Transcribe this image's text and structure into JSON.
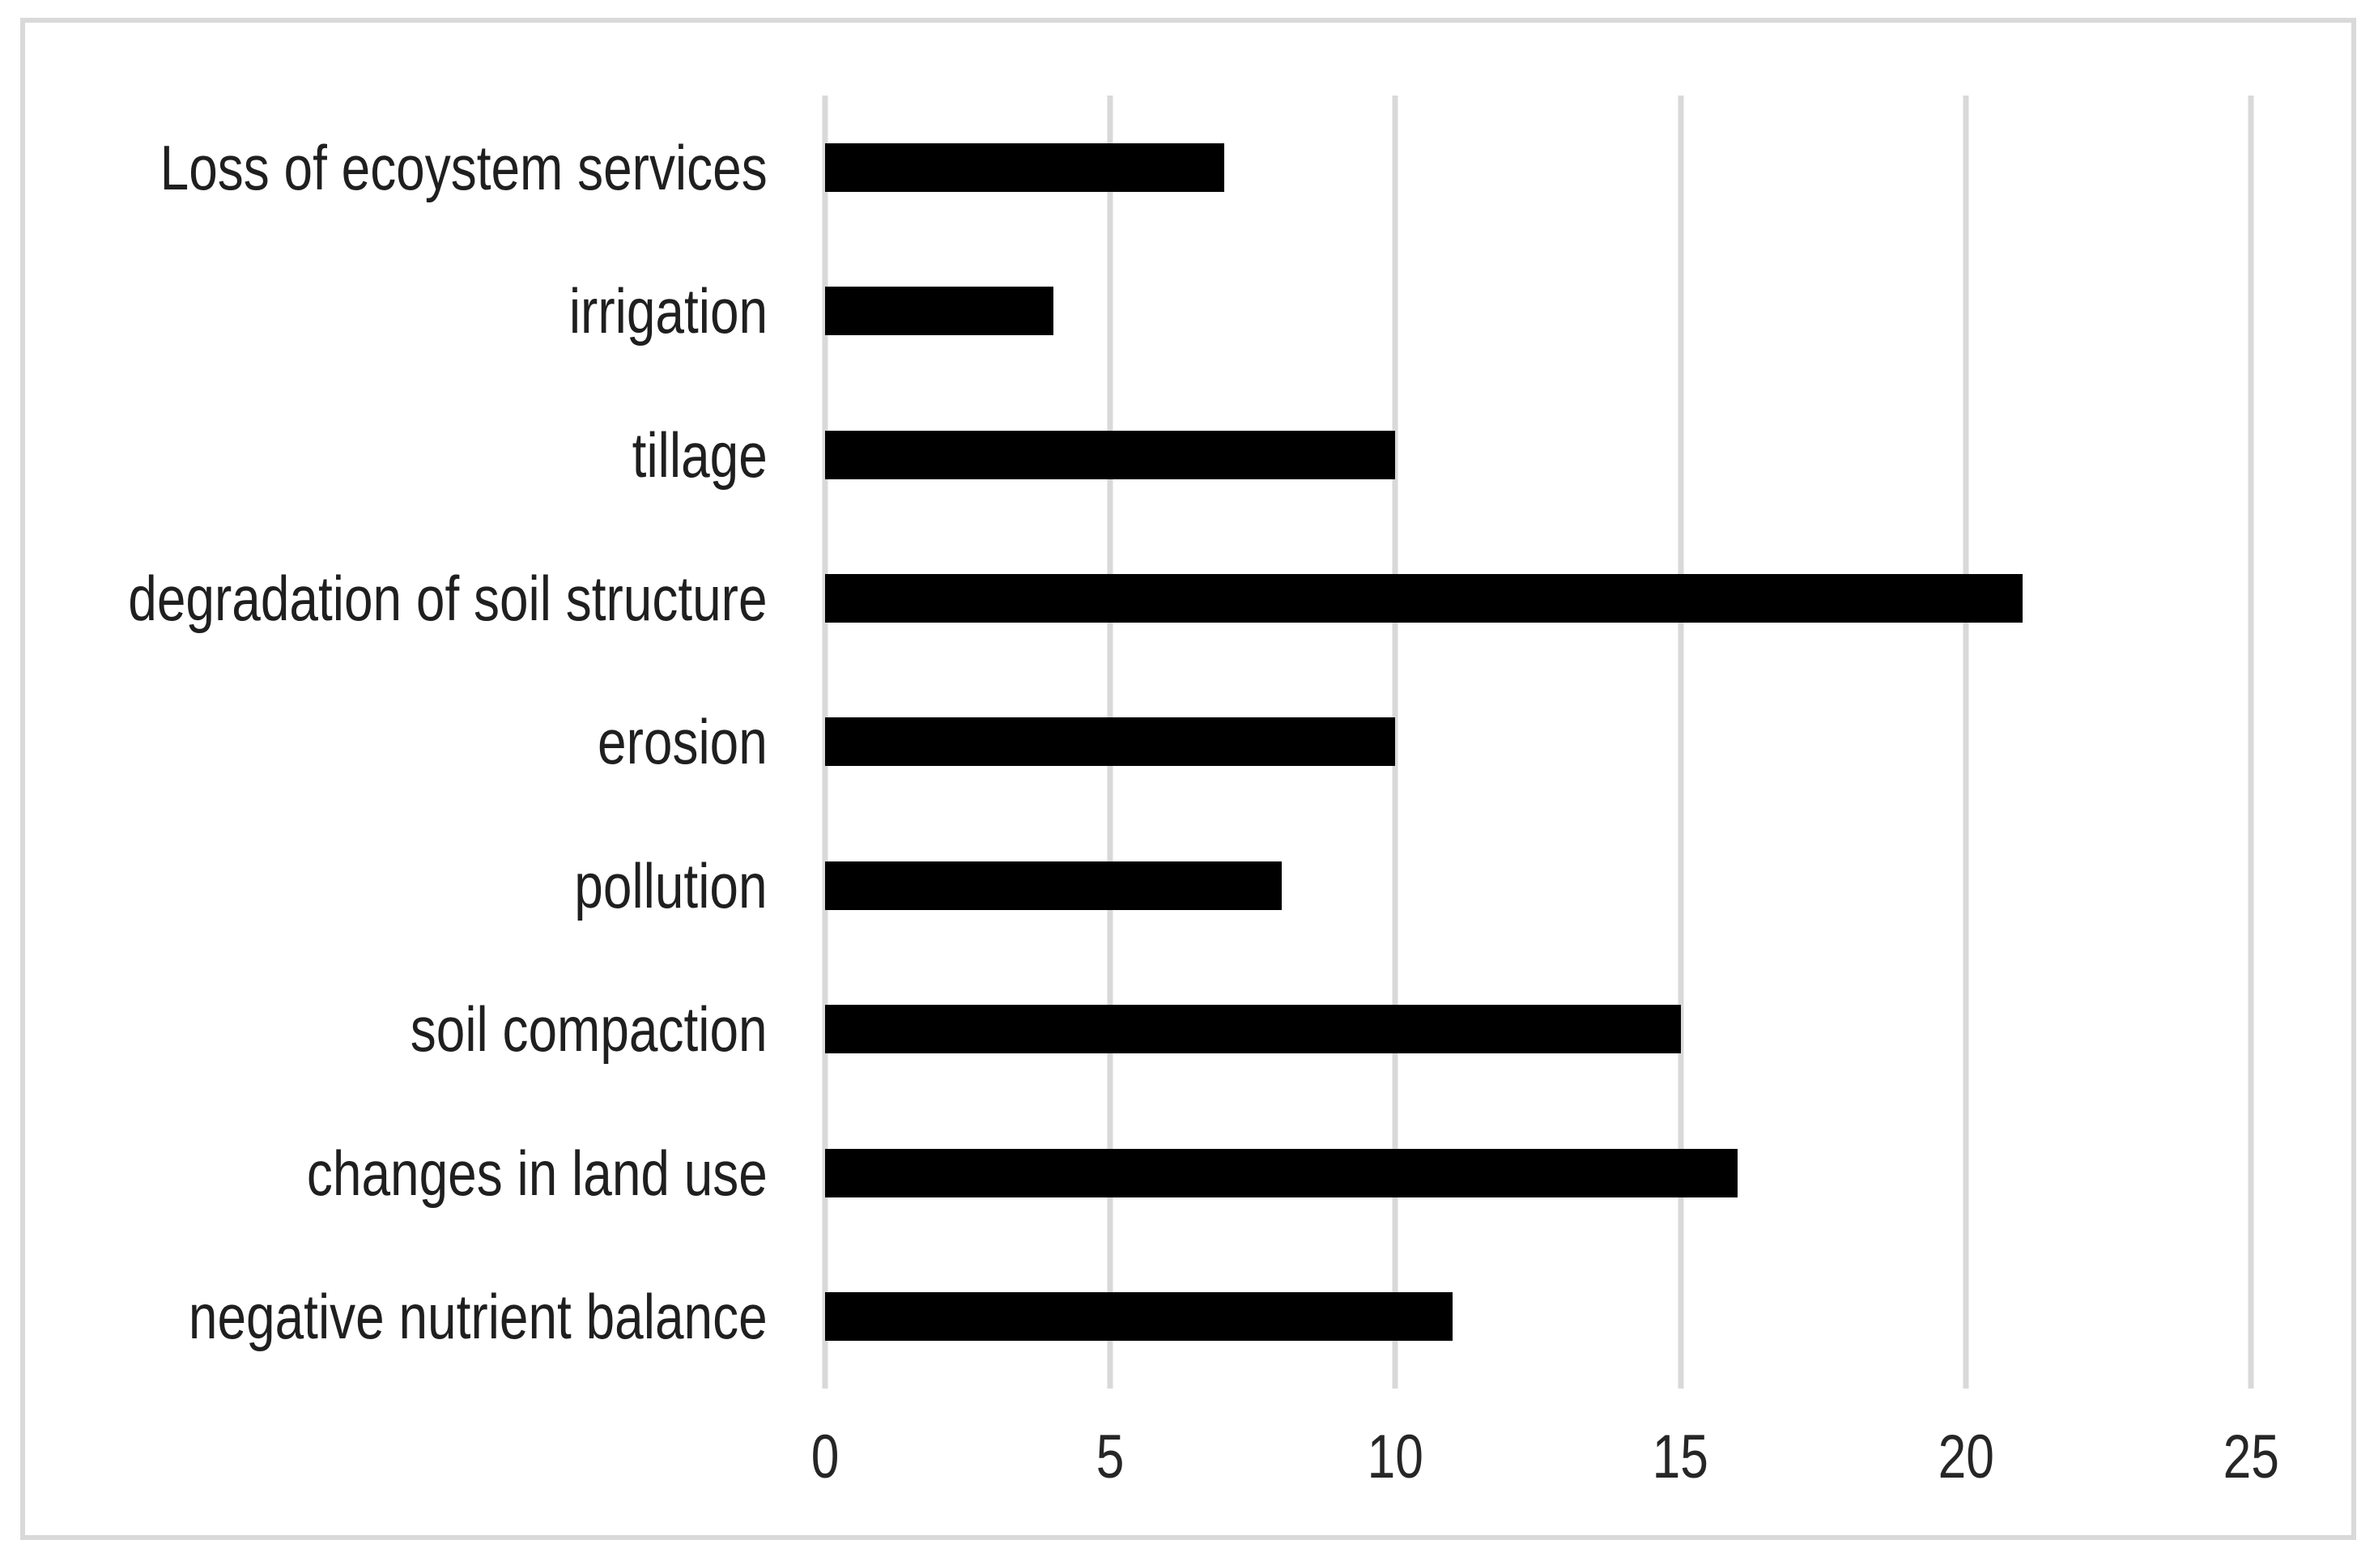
{
  "chart_data": {
    "type": "bar",
    "orientation": "horizontal",
    "title": "",
    "xlabel": "",
    "ylabel": "",
    "categories": [
      "Loss of ecoystem services",
      "irrigation",
      "tillage",
      "degradation of soil structure",
      "erosion",
      "pollution",
      "soil compaction",
      "changes in land use",
      "negative nutrient balance"
    ],
    "values": [
      7,
      4,
      10,
      21,
      10,
      8,
      15,
      16,
      11
    ],
    "xlim": [
      0,
      25
    ],
    "xticks": [
      0,
      5,
      10,
      15,
      20,
      25
    ],
    "grid": "vertical",
    "legend": "none",
    "colors": {
      "bar": "#000000",
      "gridline": "#d9d9d9",
      "frame_border": "#d9d9d9",
      "tick_label": "#262626",
      "category_label": "#1f1f1f",
      "background": "#ffffff"
    }
  }
}
